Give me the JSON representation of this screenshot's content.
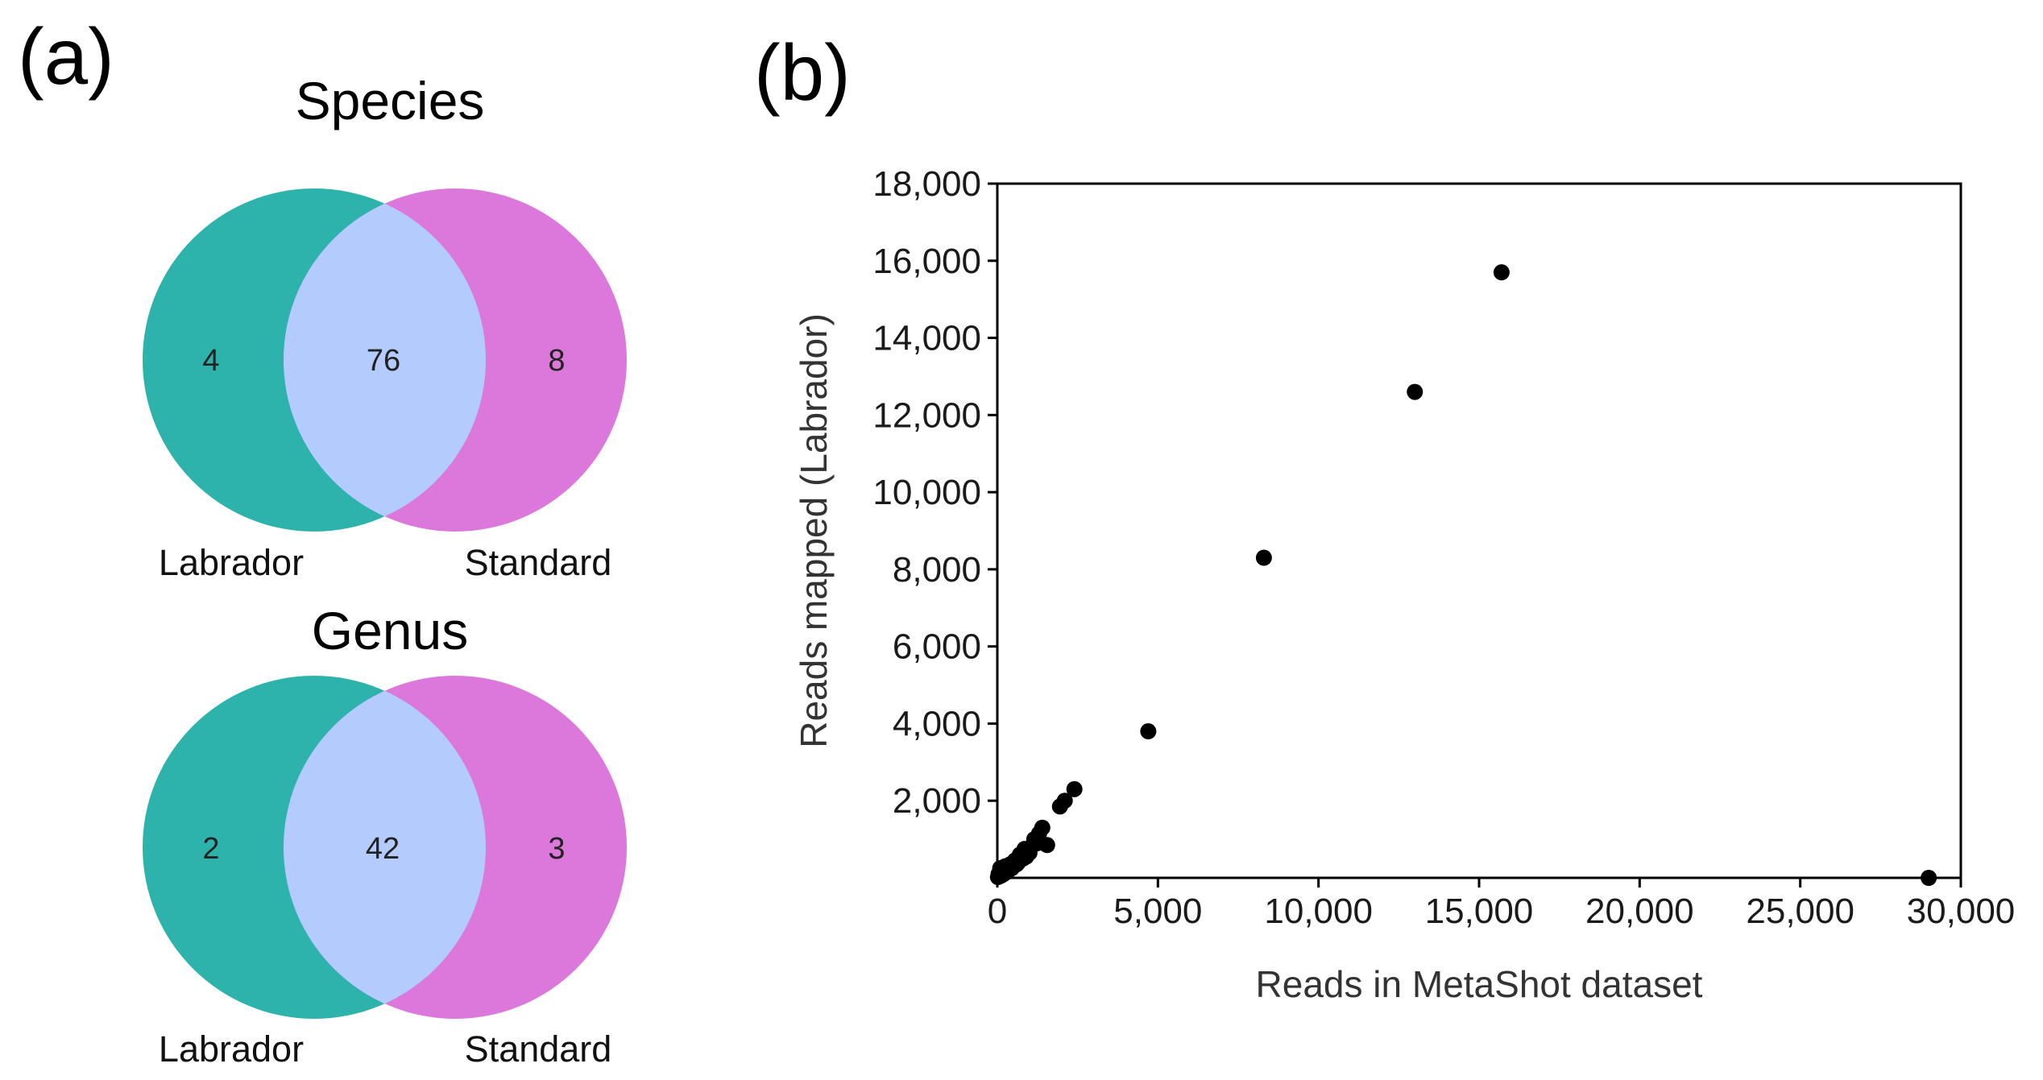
{
  "panel_a": {
    "label": "(a)",
    "species": {
      "title": "Species",
      "left_only": "4",
      "both": "76",
      "right_only": "8",
      "left_label": "Labrador",
      "right_label": "Standard"
    },
    "genus": {
      "title": "Genus",
      "left_only": "2",
      "both": "42",
      "right_only": "3",
      "left_label": "Labrador",
      "right_label": "Standard"
    },
    "colors": {
      "left": "#2db3ab",
      "right": "#dc78db",
      "overlap": "#b3ccfd"
    }
  },
  "panel_b": {
    "label": "(b)"
  },
  "chart_data": {
    "type": "scatter",
    "xlabel": "Reads in MetaShot dataset",
    "ylabel": "Reads mapped (Labrador)",
    "xlim": [
      0,
      30000
    ],
    "ylim": [
      0,
      18000
    ],
    "xticks": [
      0,
      5000,
      10000,
      15000,
      20000,
      25000,
      30000
    ],
    "xtick_labels": [
      "0",
      "5,000",
      "10,000",
      "15,000",
      "20,000",
      "25,000",
      "30,000"
    ],
    "yticks": [
      2000,
      4000,
      6000,
      8000,
      10000,
      12000,
      14000,
      16000,
      18000
    ],
    "ytick_labels": [
      "2,000",
      "4,000",
      "6,000",
      "8,000",
      "10,000",
      "12,000",
      "14,000",
      "16,000",
      "18,000"
    ],
    "point_color": "#000000",
    "points": [
      [
        15700,
        15700
      ],
      [
        13000,
        12600
      ],
      [
        8300,
        8300
      ],
      [
        4700,
        3800
      ],
      [
        2400,
        2300
      ],
      [
        2100,
        2000
      ],
      [
        1950,
        1850
      ],
      [
        1550,
        850
      ],
      [
        1400,
        1300
      ],
      [
        1300,
        1150
      ],
      [
        1250,
        900
      ],
      [
        1150,
        1000
      ],
      [
        1050,
        800
      ],
      [
        1000,
        650
      ],
      [
        900,
        550
      ],
      [
        850,
        750
      ],
      [
        800,
        500
      ],
      [
        700,
        600
      ],
      [
        650,
        400
      ],
      [
        600,
        350
      ],
      [
        550,
        450
      ],
      [
        500,
        300
      ],
      [
        450,
        250
      ],
      [
        400,
        350
      ],
      [
        350,
        200
      ],
      [
        300,
        150
      ],
      [
        250,
        300
      ],
      [
        200,
        100
      ],
      [
        150,
        150
      ],
      [
        120,
        60
      ],
      [
        90,
        250
      ],
      [
        60,
        40
      ],
      [
        40,
        100
      ],
      [
        20,
        20
      ],
      [
        29000,
        0
      ]
    ]
  }
}
